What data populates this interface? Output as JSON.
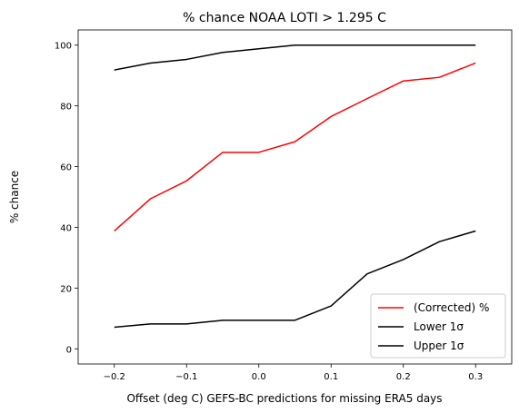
{
  "chart_data": {
    "type": "line",
    "title": "% chance NOAA LOTI > 1.295 C",
    "xlabel": "Offset (deg C) GEFS-BC predictions for missing ERA5 days",
    "ylabel": "% chance",
    "xlim": [
      -0.25,
      0.35
    ],
    "ylim": [
      -5,
      105
    ],
    "xticks": [
      -0.2,
      -0.1,
      0.0,
      0.1,
      0.2,
      0.3
    ],
    "xtick_labels": [
      "−0.2",
      "−0.1",
      "0.0",
      "0.1",
      "0.2",
      "0.3"
    ],
    "yticks": [
      0,
      20,
      40,
      60,
      80,
      100
    ],
    "ytick_labels": [
      "0",
      "20",
      "40",
      "60",
      "80",
      "100"
    ],
    "grid": false,
    "legend_position": "lower-right",
    "x": [
      -0.2,
      -0.15,
      -0.1,
      -0.05,
      0.0,
      0.05,
      0.1,
      0.15,
      0.2,
      0.25,
      0.3
    ],
    "series": [
      {
        "name": "(Corrected) %",
        "color": "#ff0000",
        "values": [
          38.8,
          49.4,
          55.3,
          64.7,
          64.7,
          68.2,
          76.5,
          82.4,
          88.2,
          89.4,
          94.1
        ]
      },
      {
        "name": "Lower 1σ",
        "color": "#000000",
        "values": [
          7.1,
          8.2,
          8.2,
          9.4,
          9.4,
          9.4,
          14.1,
          24.7,
          29.4,
          35.3,
          38.8
        ]
      },
      {
        "name": "Upper 1σ",
        "color": "#000000",
        "values": [
          91.8,
          94.1,
          95.3,
          97.6,
          98.8,
          100,
          100,
          100,
          100,
          100,
          100
        ]
      }
    ]
  }
}
